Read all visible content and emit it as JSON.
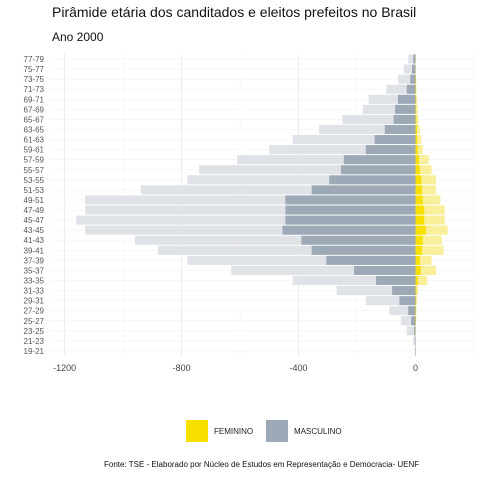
{
  "chart_data": {
    "type": "bar",
    "title": "Pirâmide etária dos canditados e eleitos prefeitos no Brasil",
    "subtitle": "Ano 2000",
    "categories": [
      "19-21",
      "21-23",
      "23-25",
      "25-27",
      "27-29",
      "29-31",
      "31-33",
      "33-35",
      "35-37",
      "37-39",
      "39-41",
      "41-43",
      "43-45",
      "45-47",
      "47-49",
      "49-51",
      "51-53",
      "53-55",
      "55-57",
      "57-59",
      "59-61",
      "61-63",
      "63-65",
      "65-67",
      "67-69",
      "69-71",
      "71-73",
      "73-75",
      "75-77",
      "77-79"
    ],
    "series": [
      {
        "name": "MASCULINO",
        "group": "candidatos",
        "values": [
          -3,
          -8,
          -30,
          -50,
          -90,
          -170,
          -270,
          -420,
          -630,
          -780,
          -880,
          -960,
          -1130,
          -1160,
          -1130,
          -1130,
          -940,
          -780,
          -740,
          -610,
          -500,
          -420,
          -330,
          -250,
          -180,
          -160,
          -100,
          -60,
          -40,
          -25
        ]
      },
      {
        "name": "MASCULINO",
        "group": "eleitos",
        "values": [
          -1,
          -2,
          -5,
          -15,
          -25,
          -55,
          -80,
          -135,
          -210,
          -305,
          -355,
          -390,
          -455,
          -445,
          -445,
          -445,
          -355,
          -295,
          -255,
          -245,
          -170,
          -140,
          -105,
          -75,
          -70,
          -60,
          -30,
          -18,
          -12,
          -8
        ]
      },
      {
        "name": "FEMININO",
        "group": "candidatos",
        "values": [
          0,
          0,
          1,
          2,
          3,
          5,
          8,
          40,
          70,
          55,
          95,
          90,
          110,
          100,
          100,
          85,
          70,
          70,
          55,
          45,
          25,
          20,
          15,
          10,
          8,
          5,
          3,
          2,
          1,
          1
        ]
      },
      {
        "name": "FEMININO",
        "group": "eleitos",
        "values": [
          0,
          0,
          0,
          1,
          1,
          2,
          3,
          8,
          18,
          15,
          22,
          25,
          35,
          30,
          30,
          25,
          22,
          20,
          15,
          12,
          8,
          6,
          5,
          3,
          2,
          2,
          1,
          1,
          0,
          0
        ]
      }
    ],
    "xlim": [
      -1250,
      200
    ],
    "x_ticks": [
      -1200,
      -800,
      -400,
      0
    ],
    "x_tick_labels": [
      "-1200",
      "-800",
      "-400",
      "0"
    ],
    "colors": {
      "masculino_eleitos": "#9ea9b8",
      "masculino_candidatos": "#dfe2e6",
      "feminino_eleitos": "#f7df00",
      "feminino_candidatos": "#f9ef9a"
    },
    "grid": true,
    "legend": {
      "placement": "bottom",
      "items": [
        {
          "label": "FEMININO",
          "color": "#f7df00"
        },
        {
          "label": "MASCULINO",
          "color": "#9ea9b8"
        }
      ]
    },
    "source": "Fonte: TSE - Elaborado por Núcleo de Estudos em Representação e Democracia- UENF"
  }
}
